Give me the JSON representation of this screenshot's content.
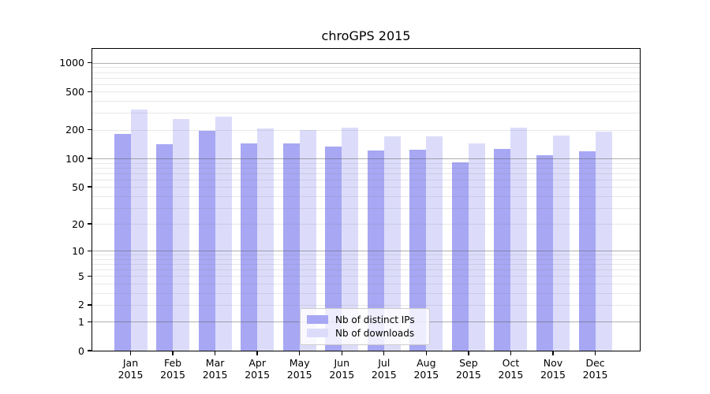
{
  "title": "chroGPS 2015",
  "chart_data": {
    "type": "bar",
    "title": "chroGPS 2015",
    "xlabel": "",
    "ylabel": "",
    "yscale": "log1p",
    "grid": true,
    "ylim": [
      0,
      1400
    ],
    "y_ticks": [
      0,
      1,
      2,
      5,
      10,
      20,
      50,
      100,
      200,
      500,
      1000
    ],
    "major_gridlines": [
      1,
      10,
      100,
      1000
    ],
    "legend_position": "lower center",
    "categories": [
      {
        "label": "Jan",
        "sublabel": "2015"
      },
      {
        "label": "Feb",
        "sublabel": "2015"
      },
      {
        "label": "Mar",
        "sublabel": "2015"
      },
      {
        "label": "Apr",
        "sublabel": "2015"
      },
      {
        "label": "May",
        "sublabel": "2015"
      },
      {
        "label": "Jun",
        "sublabel": "2015"
      },
      {
        "label": "Jul",
        "sublabel": "2015"
      },
      {
        "label": "Aug",
        "sublabel": "2015"
      },
      {
        "label": "Sep",
        "sublabel": "2015"
      },
      {
        "label": "Oct",
        "sublabel": "2015"
      },
      {
        "label": "Nov",
        "sublabel": "2015"
      },
      {
        "label": "Dec",
        "sublabel": "2015"
      }
    ],
    "series": [
      {
        "name": "Nb of distinct IPs",
        "color": "#a7a7f4",
        "values": [
          182,
          140,
          195,
          143,
          144,
          134,
          121,
          123,
          91,
          126,
          108,
          119
        ]
      },
      {
        "name": "Nb of downloads",
        "color": "#dcdcfa",
        "values": [
          326,
          258,
          275,
          207,
          200,
          211,
          171,
          170,
          145,
          211,
          174,
          192
        ]
      }
    ]
  }
}
